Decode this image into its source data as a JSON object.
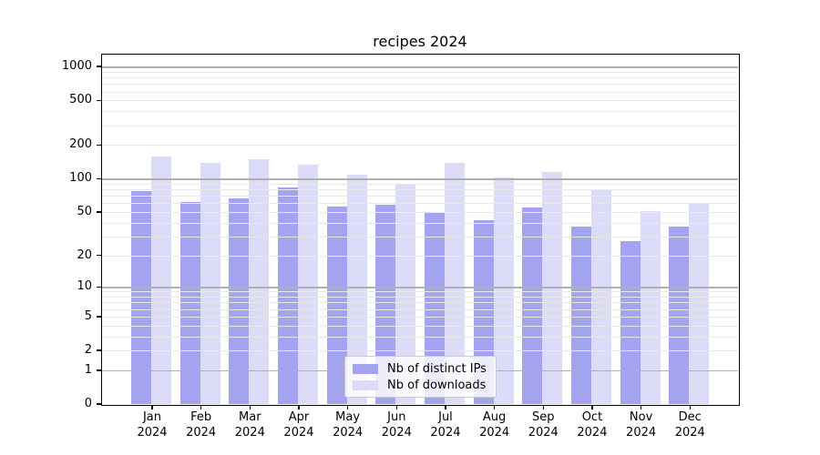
{
  "title": "recipes 2024",
  "chart_data": {
    "type": "bar",
    "title": "recipes 2024",
    "categories": [
      "Jan 2024",
      "Feb 2024",
      "Mar 2024",
      "Apr 2024",
      "May 2024",
      "Jun 2024",
      "Jul 2024",
      "Aug 2024",
      "Sep 2024",
      "Oct 2024",
      "Nov 2024",
      "Dec 2024"
    ],
    "x_tick_line1": [
      "Jan",
      "Feb",
      "Mar",
      "Apr",
      "May",
      "Jun",
      "Jul",
      "Aug",
      "Sep",
      "Oct",
      "Nov",
      "Dec"
    ],
    "x_tick_line2": [
      "2024",
      "2024",
      "2024",
      "2024",
      "2024",
      "2024",
      "2024",
      "2024",
      "2024",
      "2024",
      "2024",
      "2024"
    ],
    "series": [
      {
        "name": "Nb of distinct IPs",
        "color": "#a3a3f0",
        "values": [
          78,
          62,
          67,
          83,
          56,
          58,
          50,
          42,
          55,
          37,
          27,
          37
        ]
      },
      {
        "name": "Nb of downloads",
        "color": "#dcdcf8",
        "values": [
          158,
          138,
          149,
          134,
          109,
          88,
          138,
          103,
          115,
          80,
          51,
          59
        ]
      }
    ],
    "yscale": "log1p",
    "ylim": [
      0,
      1280
    ],
    "xlabel": "",
    "ylabel": "",
    "y_tick_values": [
      1000,
      500,
      200,
      100,
      50,
      20,
      10,
      5,
      2,
      1,
      0
    ],
    "y_tick_labels": [
      "1000",
      "500",
      "200",
      "100",
      "50",
      "20",
      "10",
      "5",
      "2",
      "1",
      "0"
    ],
    "y_major_gridlines": [
      1,
      10,
      100,
      1000
    ],
    "y_minor_gridlines": [
      2,
      3,
      4,
      5,
      6,
      7,
      8,
      9,
      20,
      30,
      40,
      50,
      60,
      70,
      80,
      90,
      200,
      300,
      400,
      500,
      600,
      700,
      800,
      900
    ],
    "grid": "on",
    "grid_over_bars": true,
    "legend_position": "lower center",
    "legend_entries": [
      "Nb of distinct IPs",
      "Nb of downloads"
    ]
  },
  "colors": {
    "background": "#ffffff",
    "bar_distinct_ips": "#a3a3f0",
    "bar_downloads": "#dcdcf8",
    "grid_major": "#b0b0b0",
    "grid_minor": "#e8e8e8",
    "spine": "#000000",
    "legend_border": "#cccccc",
    "text": "#000000"
  }
}
